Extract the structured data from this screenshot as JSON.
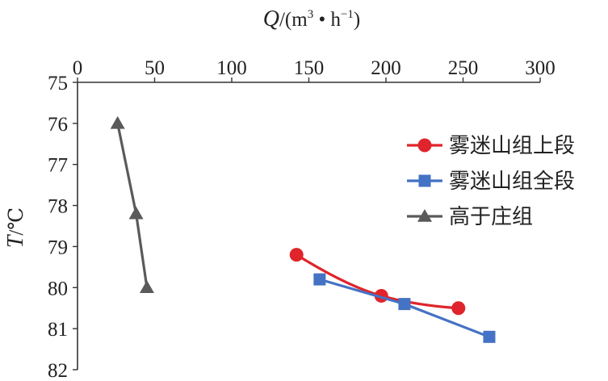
{
  "chart_data": {
    "type": "scatter",
    "title": "",
    "xlabel": "Q/(m³·h⁻¹)",
    "xlabel_parts": {
      "symbol": "Q",
      "unit_open": "/(m",
      "unit_exp1": "3",
      "unit_mid": " • h",
      "unit_exp2": "−1",
      "unit_close": ")"
    },
    "ylabel": "T/℃",
    "ylabel_parts": {
      "symbol": "T",
      "unit": "/℃"
    },
    "xlim": [
      0,
      300
    ],
    "ylim": [
      75,
      82
    ],
    "y_inverted": true,
    "x_axis_position": "top",
    "x_ticks": [
      0,
      50,
      100,
      150,
      200,
      250,
      300
    ],
    "y_ticks": [
      75,
      76,
      77,
      78,
      79,
      80,
      81,
      82
    ],
    "grid": false,
    "legend_position": "right",
    "series": [
      {
        "name": "雾迷山组上段",
        "color": "#e0242b",
        "marker": "circle",
        "points": [
          [
            142,
            79.2
          ],
          [
            197,
            80.2
          ],
          [
            247,
            80.5
          ]
        ]
      },
      {
        "name": "雾迷山组全段",
        "color": "#4472c4",
        "marker": "square",
        "points": [
          [
            157,
            79.8
          ],
          [
            212,
            80.4
          ],
          [
            267,
            81.2
          ]
        ]
      },
      {
        "name": "高于庄组",
        "color": "#5a5a5a",
        "marker": "triangle",
        "points": [
          [
            26,
            76.0
          ],
          [
            38,
            78.2
          ],
          [
            45,
            80.0
          ]
        ]
      }
    ]
  }
}
